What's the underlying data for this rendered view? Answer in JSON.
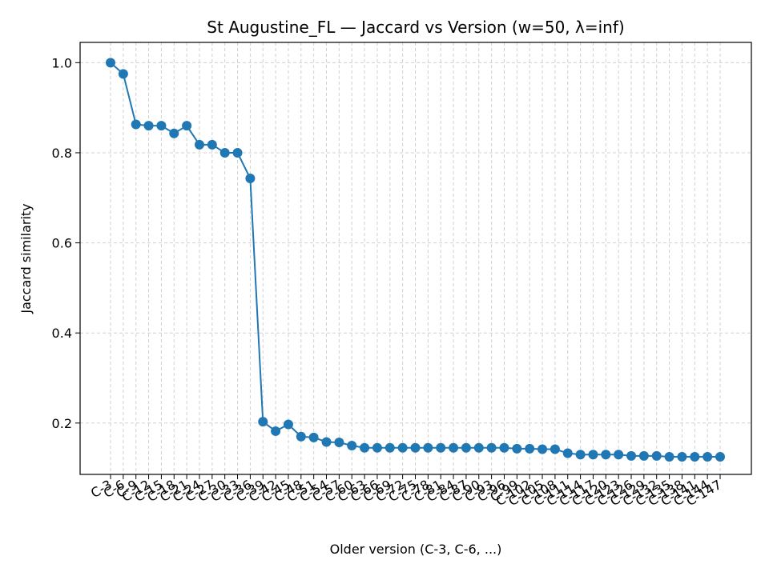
{
  "chart_data": {
    "type": "line",
    "title": "St Augustine_FL — Jaccard vs Version (w=50, λ=inf)",
    "xlabel": "Older version (C-3, C-6, ...)",
    "ylabel": "Jaccard similarity",
    "ylim": [
      0.086,
      1.045
    ],
    "yticks": [
      "0.2",
      "0.4",
      "0.6",
      "0.8",
      "1.0"
    ],
    "grid": true,
    "marker": "circle",
    "color": "#1f77b4",
    "categories": [
      "C-3",
      "C-6",
      "C-9",
      "C-12",
      "C-15",
      "C-18",
      "C-21",
      "C-24",
      "C-27",
      "C-30",
      "C-33",
      "C-36",
      "C-39",
      "C-42",
      "C-45",
      "C-48",
      "C-51",
      "C-54",
      "C-57",
      "C-60",
      "C-63",
      "C-66",
      "C-69",
      "C-72",
      "C-75",
      "C-78",
      "C-81",
      "C-84",
      "C-87",
      "C-90",
      "C-93",
      "C-96",
      "C-99",
      "C-102",
      "C-105",
      "C-108",
      "C-111",
      "C-114",
      "C-117",
      "C-120",
      "C-123",
      "C-126",
      "C-129",
      "C-132",
      "C-135",
      "C-138",
      "C-141",
      "C-144",
      "C-147"
    ],
    "values": [
      1.0,
      0.975,
      0.863,
      0.86,
      0.86,
      0.843,
      0.86,
      0.818,
      0.818,
      0.8,
      0.8,
      0.743,
      0.203,
      0.182,
      0.197,
      0.17,
      0.168,
      0.158,
      0.157,
      0.15,
      0.145,
      0.145,
      0.145,
      0.145,
      0.145,
      0.145,
      0.145,
      0.145,
      0.145,
      0.145,
      0.145,
      0.145,
      0.143,
      0.143,
      0.142,
      0.142,
      0.133,
      0.13,
      0.13,
      0.13,
      0.13,
      0.127,
      0.127,
      0.127,
      0.125,
      0.125,
      0.125,
      0.125,
      0.125
    ]
  }
}
